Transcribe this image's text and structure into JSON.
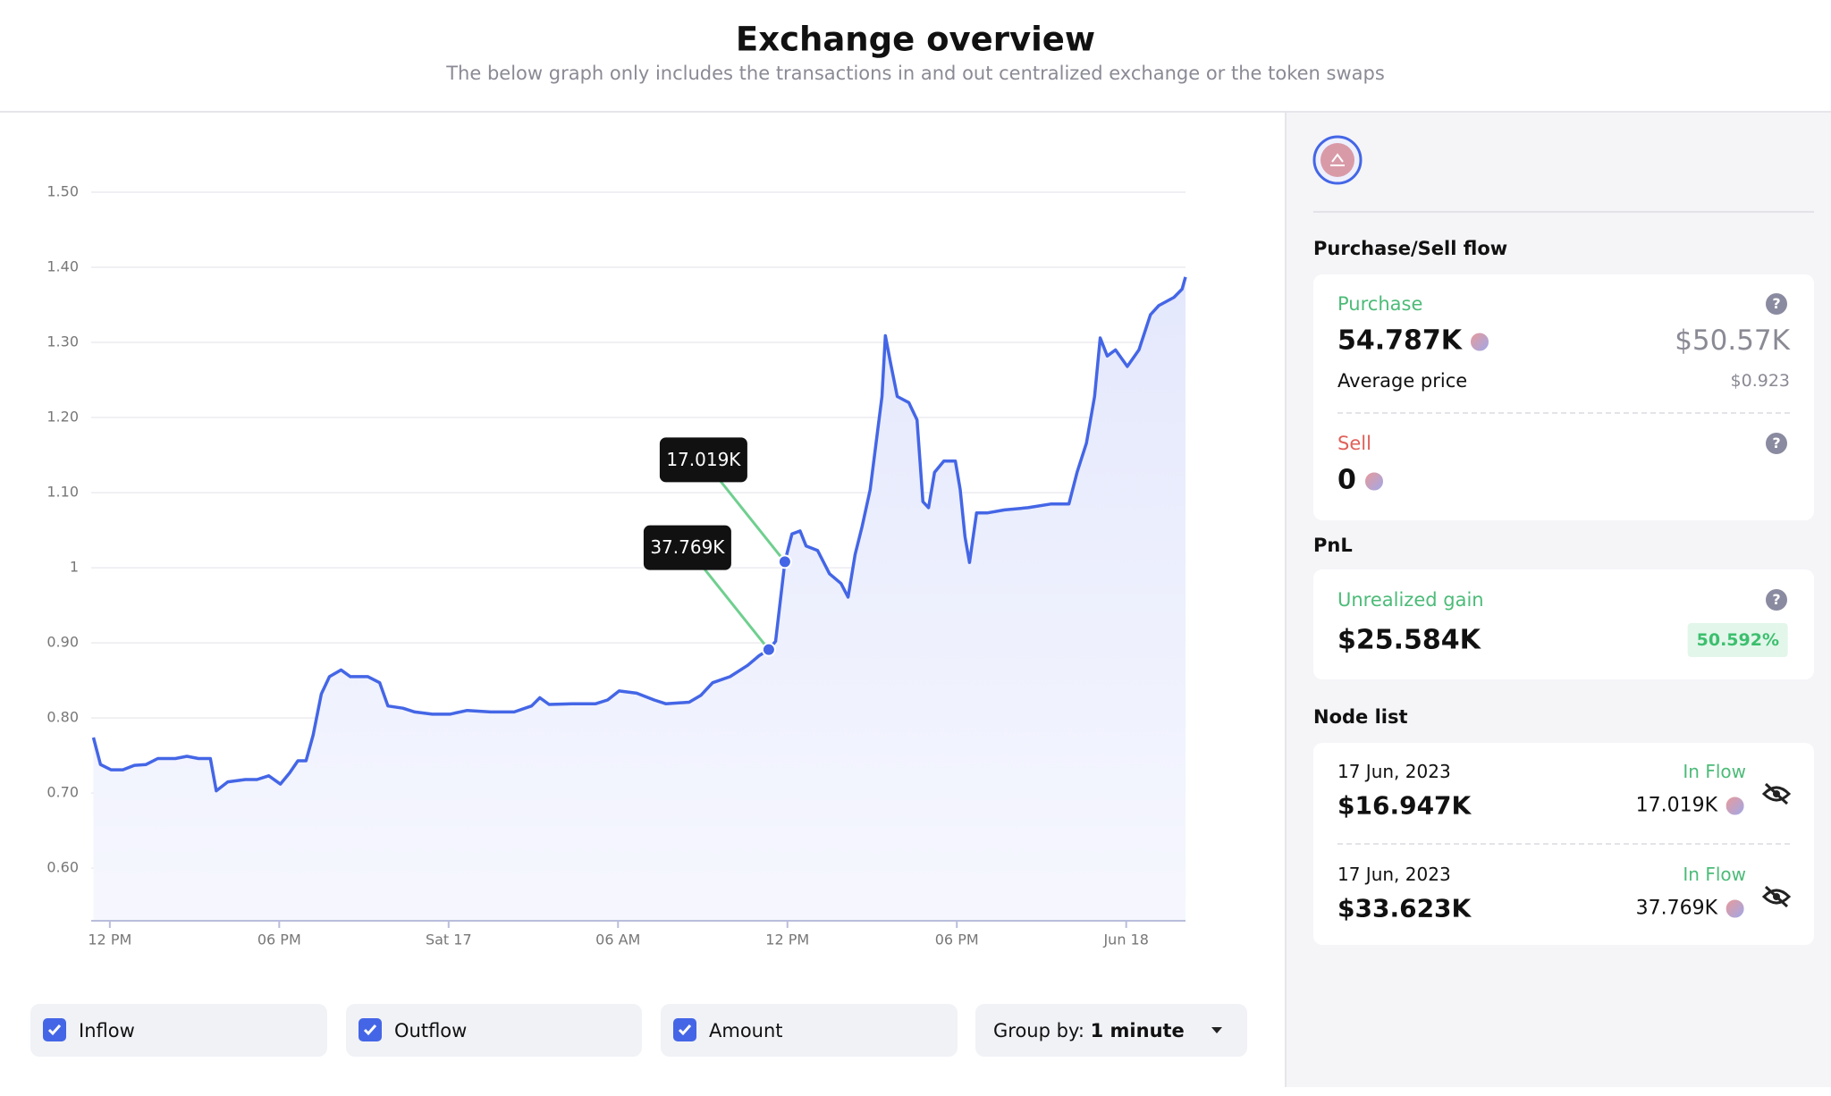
{
  "header": {
    "title": "Exchange overview",
    "subtitle": "The below graph only includes the transactions in and out centralized exchange or the token swaps"
  },
  "chart_data": {
    "type": "line",
    "x": [
      -0.58,
      -0.33,
      0.04,
      0.46,
      0.87,
      1.28,
      1.7,
      2.32,
      2.73,
      3.14,
      3.56,
      3.77,
      4.18,
      4.8,
      5.21,
      5.63,
      6.04,
      6.37,
      6.66,
      6.95,
      7.2,
      7.49,
      7.78,
      8.19,
      8.52,
      9.14,
      9.56,
      9.85,
      10.38,
      10.8,
      11.42,
      12.04,
      12.66,
      13.49,
      14.32,
      14.94,
      15.23,
      15.56,
      16.38,
      17.21,
      17.63,
      18.04,
      18.66,
      19.28,
      19.69,
      20.52,
      20.93,
      21.35,
      21.97,
      22.59,
      23.0,
      23.34,
      23.58,
      23.91,
      24.16,
      24.45,
      24.66,
      25.07,
      25.49,
      25.9,
      26.15,
      26.4,
      26.64,
      26.93,
      27.14,
      27.35,
      27.47,
      27.64,
      27.89,
      28.3,
      28.59,
      28.8,
      29.0,
      29.21,
      29.54,
      29.95,
      30.12,
      30.29,
      30.45,
      30.7,
      31.07,
      31.69,
      32.52,
      33.35,
      33.97,
      34.26,
      34.59,
      34.88,
      35.08,
      35.33,
      35.62,
      36.04,
      36.45,
      36.86,
      37.15,
      37.69,
      37.98,
      38.1
    ],
    "series": [
      {
        "color": "#4466e6",
        "values": [
          0.774,
          0.738,
          0.731,
          0.731,
          0.737,
          0.738,
          0.746,
          0.746,
          0.749,
          0.746,
          0.746,
          0.703,
          0.715,
          0.718,
          0.718,
          0.723,
          0.712,
          0.727,
          0.743,
          0.743,
          0.777,
          0.832,
          0.855,
          0.864,
          0.855,
          0.855,
          0.847,
          0.816,
          0.813,
          0.808,
          0.805,
          0.805,
          0.81,
          0.808,
          0.808,
          0.816,
          0.827,
          0.818,
          0.819,
          0.819,
          0.824,
          0.836,
          0.833,
          0.824,
          0.819,
          0.821,
          0.83,
          0.847,
          0.855,
          0.87,
          0.883,
          0.891,
          0.902,
          1.008,
          1.045,
          1.049,
          1.029,
          1.023,
          0.992,
          0.979,
          0.961,
          1.018,
          1.054,
          1.104,
          1.166,
          1.228,
          1.309,
          1.275,
          1.228,
          1.22,
          1.197,
          1.088,
          1.08,
          1.127,
          1.142,
          1.142,
          1.104,
          1.041,
          1.007,
          1.073,
          1.073,
          1.077,
          1.08,
          1.085,
          1.085,
          1.127,
          1.166,
          1.228,
          1.306,
          1.282,
          1.29,
          1.268,
          1.29,
          1.337,
          1.349,
          1.36,
          1.371,
          1.387
        ]
      }
    ],
    "xlim": [
      -0.66,
      38.1
    ],
    "xticks": [
      {
        "value": 0,
        "label": "12 PM"
      },
      {
        "value": 6,
        "label": "06 PM"
      },
      {
        "value": 12,
        "label": "Sat 17"
      },
      {
        "value": 18,
        "label": "06 AM"
      },
      {
        "value": 24,
        "label": "12 PM"
      },
      {
        "value": 30,
        "label": "06 PM"
      },
      {
        "value": 36,
        "label": "Jun 18"
      }
    ],
    "ylim": [
      0.53,
      1.5
    ],
    "yticks": [
      {
        "value": 0.6,
        "label": "0.60"
      },
      {
        "value": 0.7,
        "label": "0.70"
      },
      {
        "value": 0.8,
        "label": "0.80"
      },
      {
        "value": 0.9,
        "label": "0.90"
      },
      1,
      {
        "value": 1.1,
        "label": "1.10"
      },
      {
        "value": 1.2,
        "label": "1.20"
      },
      {
        "value": 1.3,
        "label": "1.30"
      },
      {
        "value": 1.4,
        "label": "1.40"
      },
      {
        "value": 1.5,
        "label": "1.50"
      }
    ],
    "grid": true,
    "annotations": [
      {
        "text": "17.019K",
        "x": 23.91,
        "y": 1.008
      },
      {
        "text": "37.769K",
        "x": 23.34,
        "y": 0.891
      }
    ]
  },
  "controls": {
    "checkboxes": [
      "Inflow",
      "Outflow",
      "Amount"
    ],
    "group_by": {
      "label": "Group by:",
      "value": "1 minute"
    }
  },
  "sidebar": {
    "purchase_sell_title": "Purchase/Sell flow",
    "purchase": {
      "label": "Purchase",
      "amount": "54.787K",
      "usd": "$50.57K",
      "avg_label": "Average price",
      "avg": "$0.923"
    },
    "sell": {
      "label": "Sell",
      "amount": 0
    },
    "pnl_title": "PnL",
    "unrealized": {
      "label": "Unrealized gain",
      "value": "$25.584K",
      "percent": "50.592%"
    },
    "node_list_title": "Node list",
    "nodes": [
      {
        "date": "17 Jun, 2023",
        "value": "$16.947K",
        "flow": "In Flow",
        "amount": "17.019K"
      },
      {
        "date": "17 Jun, 2023",
        "value": "$33.623K",
        "flow": "In Flow",
        "amount": "37.769K"
      }
    ]
  }
}
